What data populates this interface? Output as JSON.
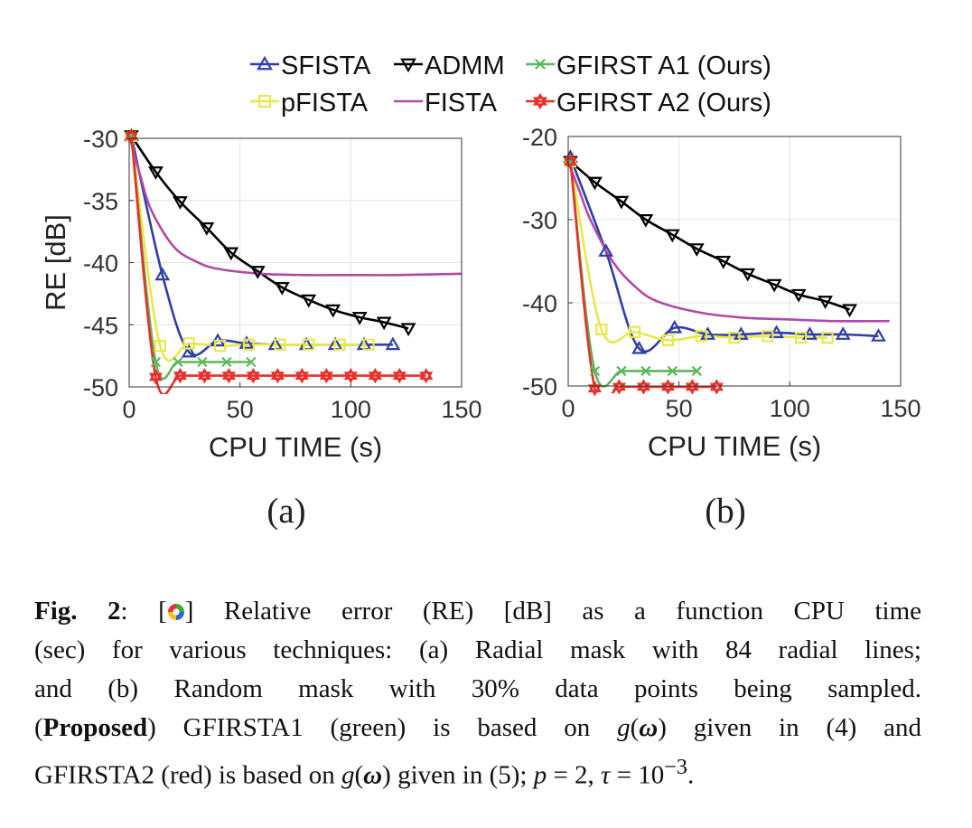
{
  "chart_data": [
    {
      "type": "line",
      "panel_label": "(a)",
      "xlabel": "CPU TIME (s)",
      "ylabel": "RE [dB]",
      "xlim": [
        0,
        150
      ],
      "ylim": [
        -50,
        -30
      ],
      "xticks": [
        "0",
        "50",
        "100",
        "150"
      ],
      "yticks": [
        "-30",
        "-35",
        "-40",
        "-45",
        "-50"
      ],
      "grid": true,
      "series": [
        {
          "name": "SFISTA",
          "color": "#2f3ea8",
          "marker": "triangle-up",
          "x": [
            1,
            15,
            27,
            40,
            53,
            66,
            80,
            93,
            106,
            119
          ],
          "y": [
            -29.8,
            -41.0,
            -47.2,
            -46.3,
            -46.5,
            -46.6,
            -46.6,
            -46.6,
            -46.6,
            -46.6
          ]
        },
        {
          "name": "pFISTA",
          "color": "#e8e84a",
          "marker": "square",
          "x": [
            1,
            14,
            27,
            41,
            54,
            68,
            81,
            95,
            108
          ],
          "y": [
            -29.8,
            -46.7,
            -46.5,
            -46.7,
            -46.6,
            -46.6,
            -46.6,
            -46.6,
            -46.6
          ]
        },
        {
          "name": "ADMM",
          "color": "#000000",
          "marker": "triangle-down",
          "x": [
            1,
            12,
            23,
            35,
            46,
            58,
            69,
            81,
            92,
            104,
            115,
            126
          ],
          "y": [
            -29.8,
            -32.7,
            -35.1,
            -37.2,
            -39.2,
            -40.7,
            -42.0,
            -43.0,
            -43.8,
            -44.4,
            -44.8,
            -45.3
          ]
        },
        {
          "name": "FISTA",
          "color": "#b04aa6",
          "marker": "none",
          "x": [
            0,
            5,
            10,
            20,
            30,
            40,
            60,
            80,
            100,
            120,
            150
          ],
          "y": [
            -29.8,
            -33.0,
            -35.8,
            -38.7,
            -39.9,
            -40.5,
            -40.9,
            -41.0,
            -41.0,
            -41.0,
            -40.9
          ]
        },
        {
          "name": "GFIRST A1 (Ours)",
          "color": "#5cb85c",
          "marker": "x",
          "x": [
            1,
            12,
            22,
            33,
            44,
            55
          ],
          "y": [
            -29.8,
            -48.0,
            -48.0,
            -48.0,
            -48.0,
            -48.0
          ]
        },
        {
          "name": "GFIRST A2 (Ours)",
          "color": "#e8302a",
          "marker": "hexagram",
          "x": [
            1,
            12,
            23,
            34,
            45,
            56,
            67,
            78,
            89,
            100,
            111,
            122,
            134
          ],
          "y": [
            -29.8,
            -49.2,
            -49.1,
            -49.1,
            -49.1,
            -49.1,
            -49.1,
            -49.1,
            -49.1,
            -49.1,
            -49.1,
            -49.1,
            -49.1
          ]
        }
      ]
    },
    {
      "type": "line",
      "panel_label": "(b)",
      "xlabel": "CPU TIME (s)",
      "ylabel": "",
      "xlim": [
        0,
        150
      ],
      "ylim": [
        -50,
        -20
      ],
      "xticks": [
        "0",
        "50",
        "100",
        "150"
      ],
      "yticks": [
        "-20",
        "-30",
        "-40",
        "-50"
      ],
      "grid": true,
      "series": [
        {
          "name": "SFISTA",
          "color": "#2f3ea8",
          "marker": "triangle-up",
          "x": [
            1,
            17,
            32,
            48,
            63,
            78,
            94,
            109,
            124,
            140
          ],
          "y": [
            -22.5,
            -33.8,
            -45.5,
            -43.0,
            -43.8,
            -43.8,
            -43.6,
            -43.8,
            -43.8,
            -44.0
          ]
        },
        {
          "name": "pFISTA",
          "color": "#e8e84a",
          "marker": "square",
          "x": [
            1,
            15,
            30,
            45,
            60,
            75,
            90,
            105,
            117
          ],
          "y": [
            -23.0,
            -43.2,
            -43.5,
            -44.5,
            -44.0,
            -44.2,
            -44.0,
            -44.2,
            -44.2
          ]
        },
        {
          "name": "ADMM",
          "color": "#000000",
          "marker": "triangle-down",
          "x": [
            1,
            12,
            24,
            35,
            47,
            58,
            70,
            81,
            93,
            104,
            116,
            127
          ],
          "y": [
            -23.0,
            -25.5,
            -27.8,
            -30.0,
            -31.8,
            -33.5,
            -35.0,
            -36.5,
            -37.8,
            -39.0,
            -39.8,
            -40.8
          ]
        },
        {
          "name": "FISTA",
          "color": "#b04aa6",
          "marker": "none",
          "x": [
            0,
            5,
            10,
            20,
            30,
            40,
            60,
            80,
            100,
            120,
            145
          ],
          "y": [
            -23.0,
            -26.5,
            -30.0,
            -35.0,
            -38.0,
            -39.8,
            -41.2,
            -41.8,
            -42.0,
            -42.2,
            -42.2
          ]
        },
        {
          "name": "GFIRST A1 (Ours)",
          "color": "#5cb85c",
          "marker": "x",
          "x": [
            1,
            12,
            24,
            35,
            47,
            58
          ],
          "y": [
            -23.0,
            -48.2,
            -48.2,
            -48.2,
            -48.2,
            -48.2
          ]
        },
        {
          "name": "GFIRST A2 (Ours)",
          "color": "#e8302a",
          "marker": "hexagram",
          "x": [
            1,
            12,
            23,
            34,
            45,
            56,
            67
          ],
          "y": [
            -23.0,
            -50.3,
            -50.1,
            -50.1,
            -50.1,
            -50.1,
            -50.1
          ]
        }
      ]
    }
  ],
  "legend": {
    "row1": [
      "SFISTA",
      "ADMM",
      "GFIRST A1 (Ours)"
    ],
    "row2": [
      "pFISTA",
      "FISTA",
      "GFIRST A2 (Ours)"
    ]
  },
  "caption": {
    "line1": {
      "figlabel": "Fig. 2",
      "pre": ":  [",
      "post": "] Relative error (RE) [dB] as a function CPU time"
    },
    "line2": "(sec) for various techniques: (a) Radial mask with 84 radial lines;",
    "line3": "and (b) Random mask with 30% data points being sampled.",
    "line4": {
      "bold": "Proposed",
      "pre": "(",
      "mid": ") GFIRSTA1 (green) is based on ",
      "g": "g",
      "omega": "ω",
      "post": " given in (4) and"
    },
    "line5": {
      "pre": "GFIRSTA2 (red) is based on ",
      "g": "g",
      "omega": "ω",
      "mid": " given in (5); ",
      "p": "p",
      "eq1": " = 2, ",
      "tau": "τ",
      "eq2": " = 10",
      "exp": "−3",
      "end": "."
    }
  },
  "colors": {
    "axis": "#333333",
    "grid": "#e3e3e3"
  }
}
